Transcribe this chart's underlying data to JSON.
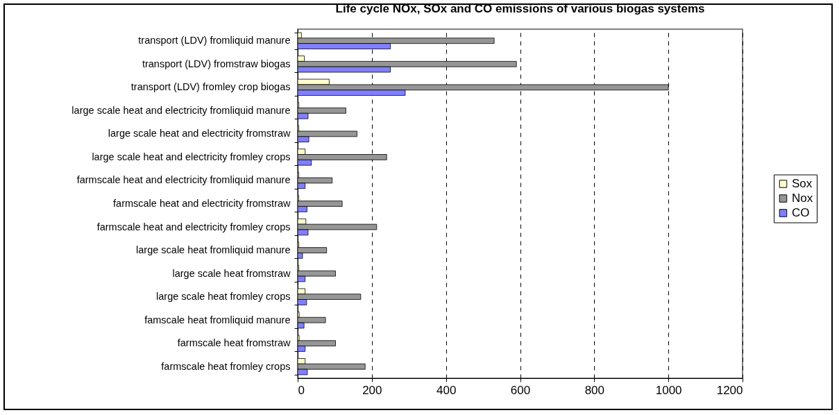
{
  "chart_data": {
    "type": "bar",
    "orientation": "horizontal",
    "title": "Life cycle NOx, SOx and CO emissions of various biogas systems",
    "categories": [
      "transport (LDV) fromliquid manure",
      "transport (LDV) fromstraw biogas",
      "transport (LDV) fromley crop biogas",
      "large scale heat and electricity fromliquid manure",
      "large scale heat and electricity fromstraw",
      "large scale heat and electricity fromley crops",
      "farmscale heat and electricity fromliquid manure",
      "farmscale heat and electricity fromstraw",
      "farmscale heat and electricity fromley crops",
      "large scale heat fromliquid manure",
      "large scale heat fromstraw",
      "large scale heat fromley crops",
      "famscale heat fromliquid manure",
      "farmscale heat fromstraw",
      "farmscale heat fromley crops"
    ],
    "series": [
      {
        "name": "Sox",
        "color": "#ffffcc",
        "values": [
          10,
          18,
          85,
          3,
          3,
          20,
          3,
          3,
          22,
          3,
          3,
          20,
          4,
          4,
          20
        ]
      },
      {
        "name": "Nox",
        "color": "#969696",
        "values": [
          530,
          590,
          1000,
          130,
          160,
          240,
          93,
          120,
          213,
          78,
          102,
          170,
          75,
          102,
          182
        ]
      },
      {
        "name": "CO",
        "color": "#8080ff",
        "values": [
          250,
          250,
          290,
          28,
          30,
          37,
          20,
          25,
          28,
          13,
          20,
          24,
          17,
          20,
          26
        ]
      }
    ],
    "xlim": [
      0,
      1200
    ],
    "xticks": [
      0,
      200,
      400,
      600,
      800,
      1000,
      1200
    ],
    "grid": "x",
    "legend": "right"
  }
}
